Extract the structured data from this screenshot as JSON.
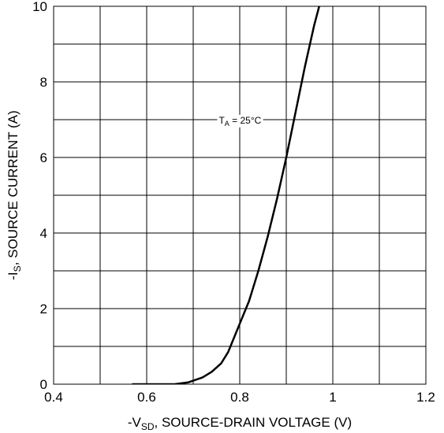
{
  "chart_data": {
    "type": "line",
    "x_axis": {
      "label_prefix": "-V",
      "label_sub": "SD",
      "label_rest": ", SOURCE-DRAIN VOLTAGE (V)",
      "range": [
        0.4,
        1.2
      ],
      "ticks": [
        0.4,
        0.6,
        0.8,
        1.0,
        1.2
      ],
      "tick_labels": [
        "0.4",
        "0.6",
        "0.8",
        "1",
        "1.2"
      ],
      "minor_step": 0.1
    },
    "y_axis": {
      "label_prefix": "-I",
      "label_sub": "S",
      "label_rest": ", SOURCE CURRENT (A)",
      "range": [
        0,
        10
      ],
      "ticks": [
        0,
        2,
        4,
        6,
        8,
        10
      ],
      "tick_labels": [
        "0",
        "2",
        "4",
        "6",
        "8",
        "10"
      ],
      "minor_step": 1
    },
    "grid": true,
    "annotation": {
      "prefix": "T",
      "sub": "A",
      "rest": " = 25°C",
      "x": 0.755,
      "y": 6.9
    },
    "series": [
      {
        "color": "#000000",
        "points": [
          [
            0.57,
            0.0
          ],
          [
            0.6,
            0.0
          ],
          [
            0.66,
            0.0
          ],
          [
            0.69,
            0.05
          ],
          [
            0.72,
            0.18
          ],
          [
            0.74,
            0.33
          ],
          [
            0.76,
            0.55
          ],
          [
            0.775,
            0.85
          ],
          [
            0.79,
            1.3
          ],
          [
            0.8,
            1.6
          ],
          [
            0.82,
            2.2
          ],
          [
            0.84,
            3.0
          ],
          [
            0.86,
            3.9
          ],
          [
            0.88,
            4.9
          ],
          [
            0.9,
            6.0
          ],
          [
            0.92,
            7.2
          ],
          [
            0.94,
            8.4
          ],
          [
            0.96,
            9.5
          ],
          [
            0.975,
            10.2
          ]
        ]
      }
    ]
  }
}
